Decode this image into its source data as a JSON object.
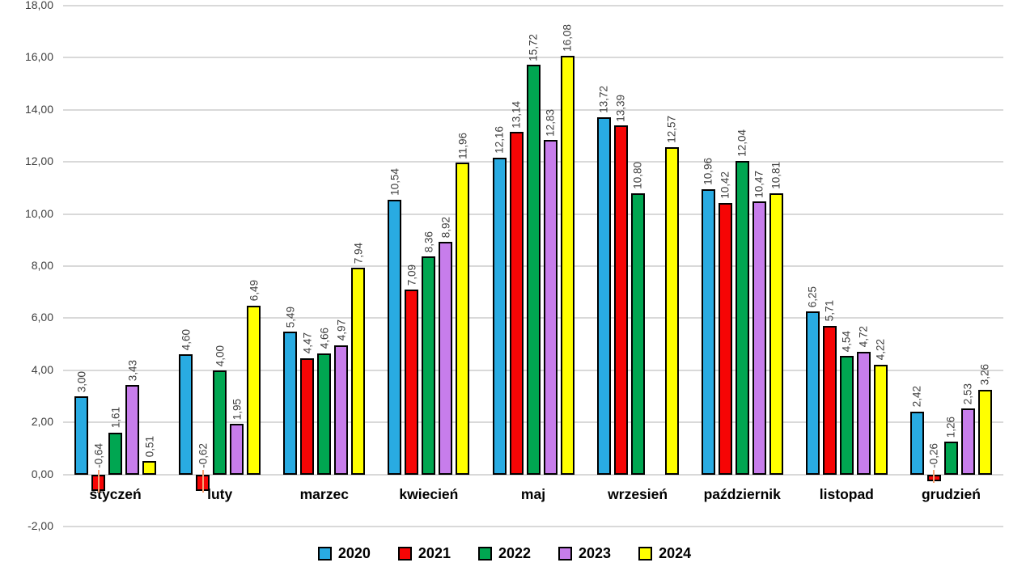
{
  "chart_data": {
    "type": "bar",
    "title": "",
    "xlabel": "",
    "ylabel": "",
    "categories": [
      "styczeń",
      "luty",
      "marzec",
      "kwiecień",
      "maj",
      "wrzesień",
      "październik",
      "listopad",
      "grudzień"
    ],
    "series": [
      {
        "name": "2020",
        "color": "#29abe2",
        "values": [
          3.0,
          4.6,
          5.49,
          10.54,
          12.16,
          13.72,
          10.96,
          6.25,
          2.42
        ]
      },
      {
        "name": "2021",
        "color": "#f60505",
        "values": [
          -0.64,
          -0.62,
          4.47,
          7.09,
          13.14,
          13.39,
          10.42,
          5.71,
          -0.26
        ]
      },
      {
        "name": "2022",
        "color": "#00a651",
        "values": [
          1.61,
          4.0,
          4.66,
          8.36,
          15.72,
          10.8,
          12.04,
          4.54,
          1.26
        ]
      },
      {
        "name": "2023",
        "color": "#c77deb",
        "values": [
          3.43,
          1.95,
          4.97,
          8.92,
          12.83,
          null,
          10.47,
          4.72,
          2.53
        ]
      },
      {
        "name": "2024",
        "color": "#ffff00",
        "values": [
          0.51,
          6.49,
          7.94,
          11.96,
          16.08,
          12.57,
          10.81,
          4.22,
          3.26
        ]
      }
    ],
    "ylim": [
      -2,
      18
    ],
    "ytick_step": 2,
    "ytick_labels": [
      "-2,00",
      "0,00",
      "2,00",
      "4,00",
      "6,00",
      "8,00",
      "10,00",
      "12,00",
      "14,00",
      "16,00",
      "18,00"
    ],
    "grid": true,
    "legend_position": "bottom",
    "decimal_separator": ",",
    "data_labels": {
      "rotation": "vertical",
      "decimals": 2
    },
    "colors": {
      "gridline": "#d9d9d9",
      "bar_border": "#000000",
      "axis_tick_text": "#3f3f3f",
      "data_label_text": "#3f3f3f",
      "category_label_text": "#000000",
      "negative_label_leader": "#f7a173",
      "background": "#ffffff"
    }
  }
}
